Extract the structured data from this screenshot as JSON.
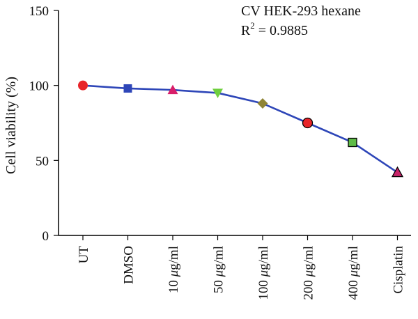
{
  "chart_data": {
    "type": "line",
    "title": "CV HEK-293 hexane",
    "annotation": {
      "prefix": "R",
      "superscript": "2",
      "suffix": " = 0.9885"
    },
    "xlabel": "",
    "ylabel": "Cell viability (%)",
    "ylim": [
      0,
      150
    ],
    "yticks": [
      0,
      50,
      100,
      150
    ],
    "grid": false,
    "categories": [
      {
        "num": "",
        "unit": "UT"
      },
      {
        "num": "",
        "unit": "DMSO"
      },
      {
        "num": "10 ",
        "unit": "μg/ml"
      },
      {
        "num": "50 ",
        "unit": "μg/ml"
      },
      {
        "num": "100 ",
        "unit": "μg/ml"
      },
      {
        "num": "200 ",
        "unit": "μg/ml"
      },
      {
        "num": "400 ",
        "unit": "μg/ml"
      },
      {
        "num": "",
        "unit": "Cisplatin"
      }
    ],
    "series": [
      {
        "name": "CV HEK-293 hexane",
        "line_color": "#2e46b8",
        "values": [
          100,
          98,
          97,
          95,
          88,
          75,
          62,
          42
        ],
        "markers": [
          {
            "shape": "circle",
            "color": "#e8252a",
            "outlined": false
          },
          {
            "shape": "square",
            "color": "#2e46b8",
            "outlined": false
          },
          {
            "shape": "triangle-up",
            "color": "#d81e6a",
            "outlined": false
          },
          {
            "shape": "triangle-down",
            "color": "#6fcf3e",
            "outlined": false
          },
          {
            "shape": "diamond",
            "color": "#8f8435",
            "outlined": false
          },
          {
            "shape": "circle",
            "color": "#e8252a",
            "outlined": true
          },
          {
            "shape": "square",
            "color": "#5ebc47",
            "outlined": true
          },
          {
            "shape": "triangle-up",
            "color": "#c7246a",
            "outlined": true
          }
        ]
      }
    ]
  }
}
